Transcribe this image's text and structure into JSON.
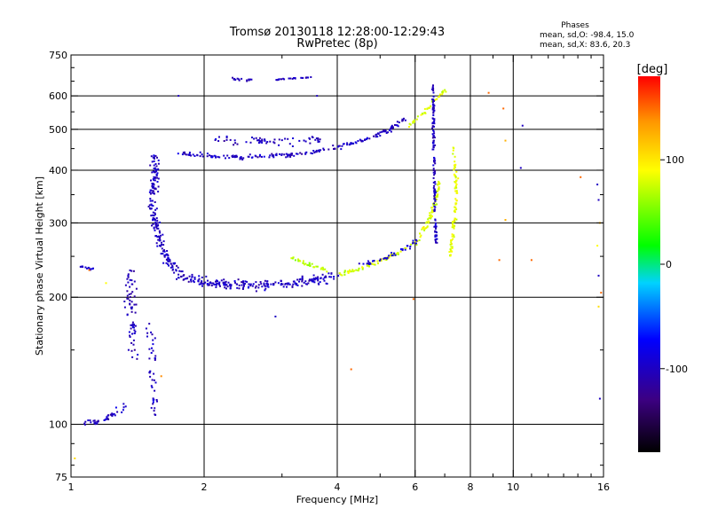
{
  "title_line1": "Tromsø 20130118 12:28:00-12:29:43",
  "title_line2": "RwPretec (8p)",
  "stats": {
    "heading": "Phases",
    "line_o": "mean, sd,O: -98.4, 15.0",
    "line_x": "mean, sd,X: 83.6, 20.3"
  },
  "colorbar": {
    "label": "[deg]",
    "range": [
      -180,
      180
    ],
    "ticks": [
      100,
      0,
      -100
    ],
    "tick_labels": [
      "100",
      "0",
      "-100"
    ]
  },
  "chart_data": {
    "type": "scatter",
    "xlabel": "Frequency [MHz]",
    "ylabel": "Stationary phase Virtual Height [km]",
    "xscale": "log",
    "yscale": "log",
    "xlim": [
      1,
      16
    ],
    "ylim": [
      75,
      750
    ],
    "grid": true,
    "x_ticks": [
      1,
      2,
      4,
      6,
      8,
      10,
      16
    ],
    "x_tick_labels": [
      "1",
      "2",
      "4",
      "6",
      "8",
      "10",
      "16"
    ],
    "x_grid": [
      2,
      4,
      6,
      8,
      10
    ],
    "x_minor": [
      3,
      5,
      7,
      9,
      11,
      12,
      13,
      14,
      15
    ],
    "y_ticks": [
      75,
      100,
      200,
      300,
      400,
      500,
      600,
      750
    ],
    "y_tick_labels": [
      "75",
      "100",
      "200",
      "300",
      "400",
      "500",
      "600",
      "750"
    ],
    "y_grid": [
      100,
      200,
      300,
      400,
      500,
      600
    ],
    "y_minor": [
      80,
      90,
      150,
      250,
      350,
      450,
      550,
      650,
      700
    ],
    "traces": [
      {
        "points": [
          [
            1.06,
            100
          ],
          [
            1.1,
            102
          ],
          [
            1.15,
            101
          ],
          [
            1.2,
            103
          ],
          [
            1.25,
            106
          ],
          [
            1.3,
            109
          ],
          [
            1.32,
            111
          ]
        ],
        "phase": -100,
        "n": 40,
        "jx": 0.03,
        "jy": 0.02
      },
      {
        "points": [
          [
            1.04,
            237
          ],
          [
            1.12,
            233
          ]
        ],
        "phase": -95,
        "n": 12,
        "jx": 0.01,
        "jy": 0.01
      },
      {
        "points": [
          [
            1.36,
            235
          ],
          [
            1.36,
            200
          ],
          [
            1.38,
            170
          ],
          [
            1.4,
            140
          ]
        ],
        "phase": -105,
        "n": 70,
        "jx": 0.04,
        "jy": 0.03
      },
      {
        "points": [
          [
            1.48,
            175
          ],
          [
            1.52,
            155
          ],
          [
            1.53,
            130
          ],
          [
            1.55,
            104
          ]
        ],
        "phase": -100,
        "n": 40,
        "jx": 0.03,
        "jy": 0.03
      },
      {
        "points": [
          [
            1.55,
            430
          ],
          [
            1.55,
            380
          ],
          [
            1.52,
            340
          ],
          [
            1.55,
            300
          ],
          [
            1.6,
            265
          ],
          [
            1.68,
            240
          ],
          [
            1.78,
            225
          ],
          [
            2.0,
            216
          ],
          [
            2.4,
            214
          ],
          [
            3.0,
            215
          ],
          [
            3.6,
            220
          ],
          [
            4.0,
            226
          ]
        ],
        "phase": -100,
        "n": 420,
        "jx": 0.035,
        "jy": 0.05
      },
      {
        "points": [
          [
            4.0,
            226
          ],
          [
            4.6,
            235
          ],
          [
            5.2,
            248
          ],
          [
            5.8,
            262
          ],
          [
            6.2,
            280
          ],
          [
            6.5,
            310
          ],
          [
            6.7,
            345
          ],
          [
            6.8,
            375
          ]
        ],
        "phase": 80,
        "n": 140,
        "jx": 0.02,
        "jy": 0.02
      },
      {
        "points": [
          [
            3.1,
            250
          ],
          [
            3.4,
            240
          ],
          [
            3.8,
            232
          ]
        ],
        "phase": 70,
        "n": 35,
        "jx": 0.02,
        "jy": 0.02
      },
      {
        "points": [
          [
            4.5,
            240
          ],
          [
            5.0,
            245
          ],
          [
            5.6,
            258
          ],
          [
            6.1,
            275
          ]
        ],
        "phase": -90,
        "n": 40,
        "jx": 0.03,
        "jy": 0.02
      },
      {
        "points": [
          [
            7.2,
            250
          ],
          [
            7.4,
            320
          ],
          [
            7.45,
            360
          ],
          [
            7.4,
            400
          ],
          [
            7.35,
            450
          ]
        ],
        "phase": 85,
        "n": 90,
        "jx": 0.015,
        "jy": 0.02
      },
      {
        "points": [
          [
            1.75,
            440
          ],
          [
            2.0,
            432
          ],
          [
            2.5,
            430
          ],
          [
            3.2,
            436
          ],
          [
            3.9,
            450
          ],
          [
            4.5,
            468
          ],
          [
            5.2,
            495
          ],
          [
            5.7,
            530
          ]
        ],
        "phase": -100,
        "n": 190,
        "jx": 0.02,
        "jy": 0.02
      },
      {
        "points": [
          [
            2.1,
            470
          ],
          [
            2.6,
            470
          ],
          [
            3.2,
            470
          ],
          [
            3.7,
            475
          ]
        ],
        "phase": -100,
        "n": 60,
        "jx": 0.05,
        "jy": 0.04
      },
      {
        "points": [
          [
            5.8,
            510
          ],
          [
            6.3,
            550
          ],
          [
            6.7,
            590
          ],
          [
            7.0,
            620
          ]
        ],
        "phase": 80,
        "n": 40,
        "jx": 0.02,
        "jy": 0.02
      },
      {
        "points": [
          [
            6.6,
            640
          ],
          [
            6.6,
            520
          ],
          [
            6.62,
            420
          ],
          [
            6.65,
            330
          ],
          [
            6.7,
            270
          ]
        ],
        "phase": -100,
        "n": 140,
        "jx": 0.01,
        "jy": 0.03
      },
      {
        "points": [
          [
            2.3,
            660
          ],
          [
            2.6,
            652
          ]
        ],
        "phase": -100,
        "n": 14,
        "jx": 0.01,
        "jy": 0.01
      },
      {
        "points": [
          [
            2.9,
            655
          ],
          [
            3.2,
            660
          ],
          [
            3.55,
            665
          ]
        ],
        "phase": -100,
        "n": 22,
        "jx": 0.01,
        "jy": 0.005
      }
    ],
    "scatter_points": [
      [
        1.02,
        83,
        105
      ],
      [
        1.55,
        142,
        -110
      ],
      [
        1.55,
        160,
        -100
      ],
      [
        2.9,
        180,
        -100
      ],
      [
        4.3,
        135,
        150
      ],
      [
        5.95,
        198,
        150
      ],
      [
        9.5,
        560,
        150
      ],
      [
        9.6,
        470,
        125
      ],
      [
        9.6,
        305,
        125
      ],
      [
        9.3,
        245,
        150
      ],
      [
        10.5,
        510,
        -100
      ],
      [
        11.0,
        245,
        150
      ],
      [
        10.4,
        405,
        -100
      ],
      [
        14.2,
        385,
        150
      ],
      [
        15.5,
        370,
        -100
      ],
      [
        15.6,
        340,
        -100
      ],
      [
        15.7,
        300,
        125
      ],
      [
        15.5,
        265,
        90
      ],
      [
        15.6,
        225,
        -100
      ],
      [
        15.8,
        205,
        150
      ],
      [
        15.6,
        190,
        105
      ],
      [
        15.7,
        115,
        -100
      ],
      [
        8.8,
        610,
        150
      ],
      [
        3.6,
        600,
        -100
      ],
      [
        1.75,
        600,
        -100
      ],
      [
        1.1,
        232,
        150
      ],
      [
        1.2,
        216,
        90
      ],
      [
        1.35,
        150,
        -100
      ],
      [
        1.6,
        130,
        140
      ]
    ]
  }
}
